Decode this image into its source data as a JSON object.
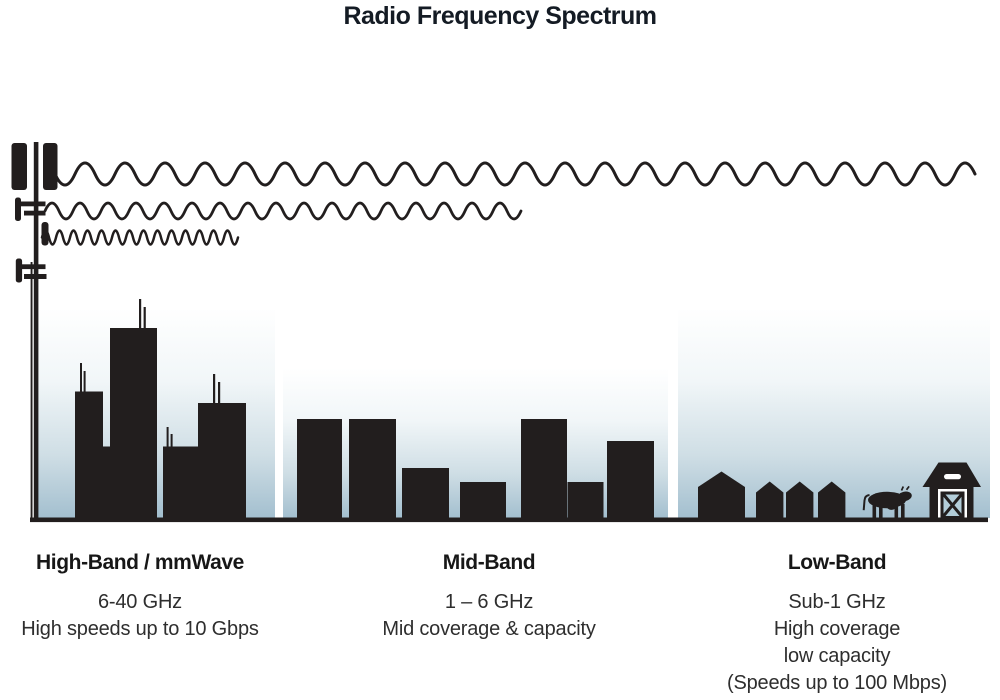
{
  "title": "Radio Frequency Spectrum",
  "bands": [
    {
      "id": "high-band",
      "heading": "High-Band / mmWave",
      "lines": [
        "6-40 GHz",
        "High speeds up to 10 Gbps"
      ]
    },
    {
      "id": "mid-band",
      "heading": "Mid-Band",
      "lines": [
        "1 – 6 GHz",
        "Mid coverage & capacity"
      ]
    },
    {
      "id": "low-band",
      "heading": "Low-Band",
      "lines": [
        "Sub-1 GHz",
        "High coverage",
        "low capacity",
        "(Speeds up to 100 Mbps)"
      ]
    }
  ],
  "illustration": {
    "icons": [
      "cell-tower-icon",
      "low-band-wave-icon",
      "mid-band-wave-icon",
      "high-band-wave-icon",
      "high-band-skyline-icon",
      "mid-band-skyline-icon",
      "farmhouse-icon",
      "shed-icon",
      "cow-icon",
      "barn-icon"
    ]
  },
  "colors": {
    "ink": "#221e1e",
    "title_text": "#141b24",
    "heading_text": "#171717",
    "body_text": "#2e2e2e",
    "sky_top": "#ffffff",
    "sky_bottom": "#a3bfcf",
    "barn_door": "#b3cdd9"
  }
}
